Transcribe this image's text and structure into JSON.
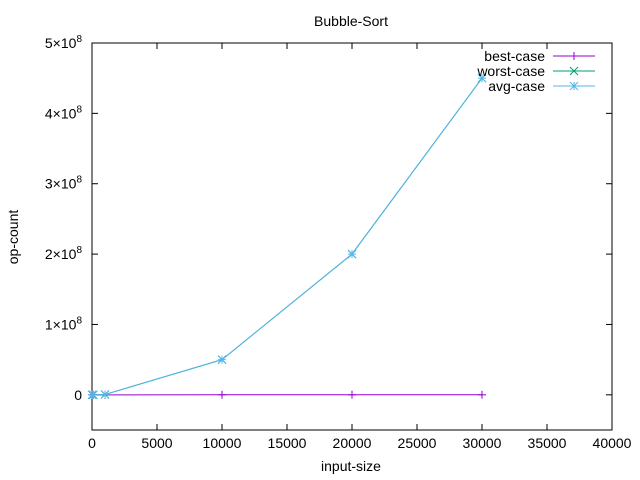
{
  "chart_data": {
    "type": "line",
    "title": "Bubble-Sort",
    "xlabel": "input-size",
    "ylabel": "op-count",
    "xlim": [
      0,
      40000
    ],
    "ylim": [
      -50000000,
      500000000
    ],
    "xticks": [
      {
        "value": 0,
        "label": "0"
      },
      {
        "value": 5000,
        "label": "5000"
      },
      {
        "value": 10000,
        "label": "10000"
      },
      {
        "value": 15000,
        "label": "15000"
      },
      {
        "value": 20000,
        "label": "20000"
      },
      {
        "value": 25000,
        "label": "25000"
      },
      {
        "value": 30000,
        "label": "30000"
      },
      {
        "value": 35000,
        "label": "35000"
      },
      {
        "value": 40000,
        "label": "40000"
      }
    ],
    "yticks": [
      {
        "value": 0,
        "mantissa": "0",
        "exponent": ""
      },
      {
        "value": 100000000,
        "mantissa": "1×10",
        "exponent": "8"
      },
      {
        "value": 200000000,
        "mantissa": "2×10",
        "exponent": "8"
      },
      {
        "value": 300000000,
        "mantissa": "3×10",
        "exponent": "8"
      },
      {
        "value": 400000000,
        "mantissa": "4×10",
        "exponent": "8"
      },
      {
        "value": 500000000,
        "mantissa": "5×10",
        "exponent": "8"
      }
    ],
    "grid": false,
    "legend_position": "top-right",
    "series": [
      {
        "name": "best-case",
        "color": "#9400d3",
        "marker": "plus",
        "x": [
          10,
          100,
          1000,
          10000,
          20000,
          30000
        ],
        "y": [
          9,
          99,
          999,
          9999,
          19999,
          29999
        ]
      },
      {
        "name": "worst-case",
        "color": "#009e73",
        "marker": "cross",
        "x": [
          10,
          100,
          1000,
          10000,
          20000,
          30000
        ],
        "y": [
          45,
          4950,
          499500,
          49995000,
          199990000,
          449985000
        ]
      },
      {
        "name": "avg-case",
        "color": "#56b4e9",
        "marker": "asterisk",
        "x": [
          10,
          100,
          1000,
          10000,
          20000,
          30000
        ],
        "y": [
          45,
          4950,
          499500,
          49995000,
          199990000,
          449985000
        ]
      }
    ]
  }
}
